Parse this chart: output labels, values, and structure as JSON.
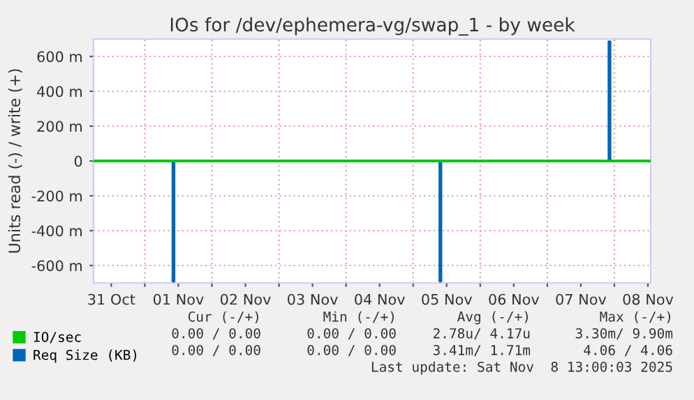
{
  "chart_data": {
    "type": "step",
    "title": "IOs for /dev/ephemera-vg/swap_1 - by week",
    "ylabel": "Units read (-) / write (+)",
    "xlim": [
      "2025-10-31T05:40",
      "2025-11-08T13:00"
    ],
    "xticks": [
      {
        "value": "2025-10-31T12:00",
        "label": "31 Oct"
      },
      {
        "value": "2025-11-01T00:00",
        "label": null
      },
      {
        "value": "2025-11-01T12:00",
        "label": "01 Nov"
      },
      {
        "value": "2025-11-02T00:00",
        "label": null
      },
      {
        "value": "2025-11-02T12:00",
        "label": "02 Nov"
      },
      {
        "value": "2025-11-03T00:00",
        "label": null
      },
      {
        "value": "2025-11-03T12:00",
        "label": "03 Nov"
      },
      {
        "value": "2025-11-04T00:00",
        "label": null
      },
      {
        "value": "2025-11-04T12:00",
        "label": "04 Nov"
      },
      {
        "value": "2025-11-05T00:00",
        "label": null
      },
      {
        "value": "2025-11-05T12:00",
        "label": "05 Nov"
      },
      {
        "value": "2025-11-06T00:00",
        "label": null
      },
      {
        "value": "2025-11-06T12:00",
        "label": "06 Nov"
      },
      {
        "value": "2025-11-07T00:00",
        "label": null
      },
      {
        "value": "2025-11-07T12:00",
        "label": "07 Nov"
      },
      {
        "value": "2025-11-08T00:00",
        "label": null
      },
      {
        "value": "2025-11-08T12:00",
        "label": "08 Nov"
      }
    ],
    "ylim": [
      -700,
      700
    ],
    "yticks": [
      {
        "value": -600,
        "label": "-600 m"
      },
      {
        "value": -400,
        "label": "-400 m"
      },
      {
        "value": -200,
        "label": "-200 m"
      },
      0,
      {
        "value": 200,
        "label": "200 m"
      },
      {
        "value": 400,
        "label": "400 m"
      },
      {
        "value": 600,
        "label": "600 m"
      }
    ],
    "series": [
      {
        "name": "IO/sec",
        "color": "#00cc00",
        "x": [
          "2025-10-31T05:40",
          "2025-11-08T13:00"
        ],
        "values": [
          0,
          0
        ]
      },
      {
        "name": "Req Size (KB)",
        "color": "#0066b3",
        "x": [
          "2025-10-31T05:40",
          "2025-11-01T10:00",
          "2025-11-01T10:30",
          "2025-11-05T09:30",
          "2025-11-05T10:00",
          "2025-11-07T22:00",
          "2025-11-07T22:30",
          "2025-11-08T13:00"
        ],
        "values": [
          0,
          -690,
          0,
          -690,
          0,
          685,
          0,
          0
        ]
      }
    ],
    "grid": true,
    "legend": "bottom",
    "annotations": [
      "Cur (-/+)",
      "Min (-/+)",
      "Avg (-/+)",
      "Max (-/+)",
      "0.00 / 0.00",
      "0.00 / 0.00",
      "2.78u/ 4.17u",
      "3.30m/ 9.90m",
      "0.00 / 0.00",
      "0.00 / 0.00",
      "3.41m/ 1.71m",
      "4.06 / 4.06",
      "Last update: Sat Nov  8 13:00:03 2025"
    ]
  }
}
